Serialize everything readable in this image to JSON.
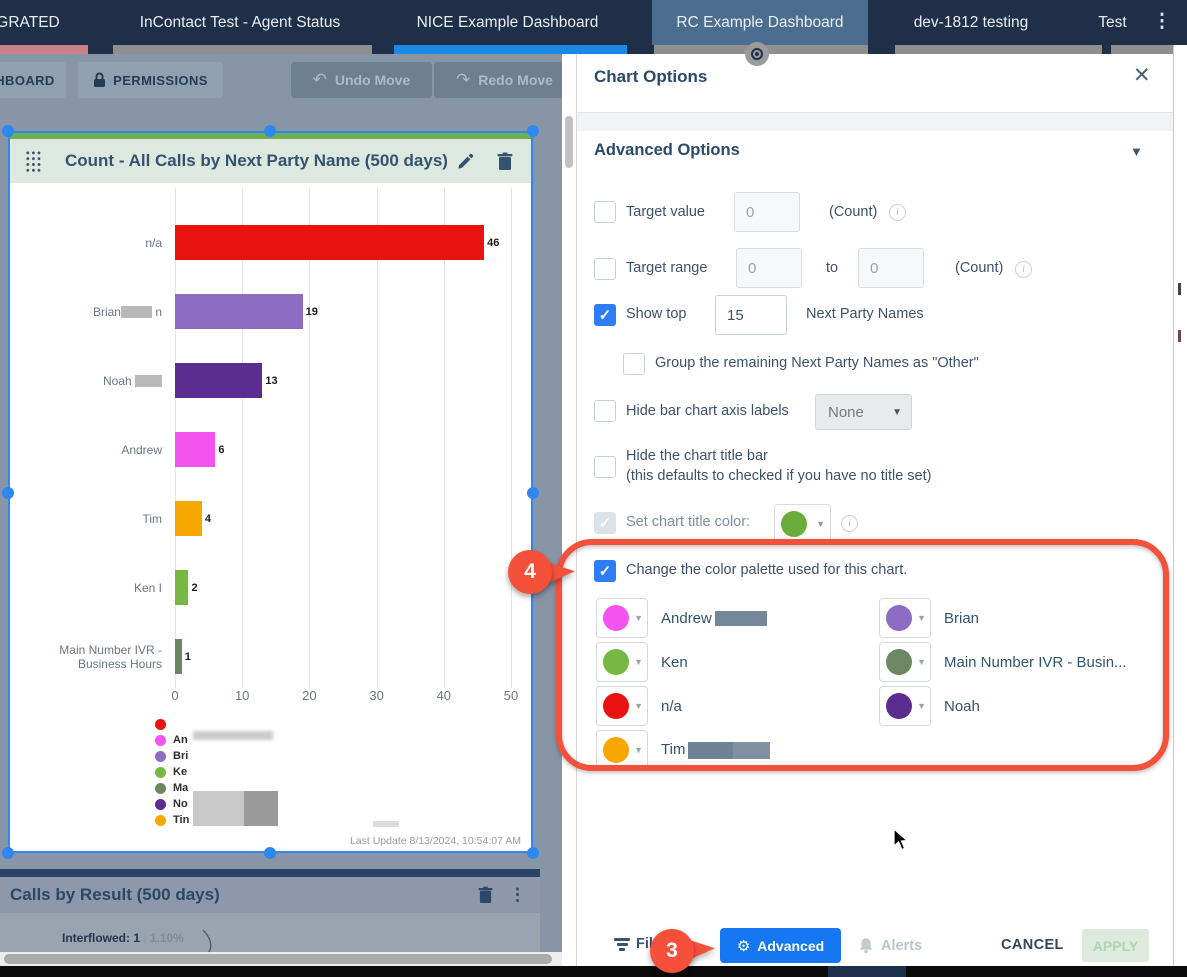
{
  "tabs": {
    "items": [
      {
        "label": "IGRATED",
        "underline": "#c98086",
        "active": false
      },
      {
        "label": "InContact Test - Agent Status",
        "underline": "#8f8f8f",
        "active": false
      },
      {
        "label": "NICE Example Dashboard",
        "underline": "#1e88e5",
        "active": false
      },
      {
        "label": "RC Example Dashboard",
        "underline": "#8f8f8f",
        "active": true,
        "has_eye_marker": true
      },
      {
        "label": "dev-1812 testing",
        "underline": "#8f8f8f",
        "active": false
      },
      {
        "label": "Test",
        "underline": "#8f8f8f",
        "active": false
      }
    ],
    "overflow_menu": "⋮"
  },
  "toolbar": {
    "dashboard_label": "HBOARD",
    "permissions_label": "PERMISSIONS",
    "undo_label": "Undo Move",
    "redo_label": "Redo Move"
  },
  "chart_card": {
    "title": "Count - All Calls by Next Party Name (500 days)",
    "last_update": "Last Update 8/13/2024, 10:54:07 AM"
  },
  "chart_data": {
    "type": "bar",
    "orientation": "horizontal",
    "title": "Count - All Calls by Next Party Name (500 days)",
    "categories": [
      "n/a",
      "Brian n",
      "Noah",
      "Andrew",
      "Tim",
      "Ken I",
      "Main Number IVR - Business Hours"
    ],
    "values": [
      46,
      19,
      13,
      6,
      4,
      2,
      1
    ],
    "colors": [
      "#e8120e",
      "#8d6cc4",
      "#5b2d91",
      "#f353ee",
      "#f7a800",
      "#77b843",
      "#6d8764"
    ],
    "xlabel": "",
    "ylabel": "",
    "xlim": [
      0,
      50
    ],
    "xticks": [
      0,
      10,
      20,
      30,
      40,
      50
    ],
    "grid": true,
    "legend_position": "bottom-left",
    "legend": [
      {
        "label": "",
        "color": "#e8120e"
      },
      {
        "label": "An",
        "color": "#f353ee"
      },
      {
        "label": "Bri",
        "color": "#8d6cc4"
      },
      {
        "label": "Ke",
        "color": "#77b843"
      },
      {
        "label": "Ma",
        "color": "#6d8764"
      },
      {
        "label": "No",
        "color": "#5b2d91"
      },
      {
        "label": "Tin",
        "color": "#f7a800"
      }
    ]
  },
  "second_chart": {
    "title": "Calls by Result (500 days)",
    "kebab": "⋮",
    "label_bold": "Interflowed: 1",
    "label_sep": "|",
    "label_pct": "1.10%"
  },
  "panel": {
    "title": "Chart Options",
    "close": "✕",
    "section": "Advanced Options",
    "section_caret": "▼",
    "rows": {
      "target_value": {
        "label": "Target value",
        "value": "0",
        "suffix": "(Count)",
        "checked": false
      },
      "target_range": {
        "label": "Target range",
        "value1": "0",
        "to": "to",
        "value2": "0",
        "suffix": "(Count)",
        "checked": false
      },
      "show_top": {
        "label": "Show top",
        "value": "15",
        "suffix": "Next Party Names",
        "checked": true
      },
      "group_other": {
        "label": "Group the remaining Next Party Names as \"Other\"",
        "checked": false
      },
      "hide_axis": {
        "label": "Hide bar chart axis labels",
        "dropdown": "None",
        "checked": false
      },
      "hide_title": {
        "label": "Hide the chart title bar",
        "label2": "(this defaults to checked if you have no title set)",
        "checked": false
      },
      "title_color": {
        "label": "Set chart title color:",
        "color": "#6aad3d",
        "checked": true,
        "disabled": true
      },
      "palette_toggle": {
        "label": "Change the color palette used for this chart.",
        "checked": true
      }
    },
    "palette": [
      {
        "name": "Andrew",
        "color": "#f353ee",
        "redacted": true
      },
      {
        "name": "Brian",
        "color": "#8d6cc4",
        "redacted": false
      },
      {
        "name": "Ken",
        "color": "#77b843",
        "redacted": false
      },
      {
        "name": "Main Number IVR - Busin...",
        "color": "#6d8764",
        "redacted": false
      },
      {
        "name": "n/a",
        "color": "#e8120e",
        "redacted": false
      },
      {
        "name": "Noah",
        "color": "#5b2d91",
        "redacted": false
      },
      {
        "name": "Tim",
        "color": "#f7a800",
        "redacted": true
      }
    ],
    "footer": {
      "filters": "Filters",
      "advanced": "Advanced",
      "alerts": "Alerts",
      "cancel": "CANCEL",
      "apply": "APPLY"
    }
  },
  "annotations": {
    "step3": "3",
    "step4": "4",
    "color": "#f4503a"
  }
}
